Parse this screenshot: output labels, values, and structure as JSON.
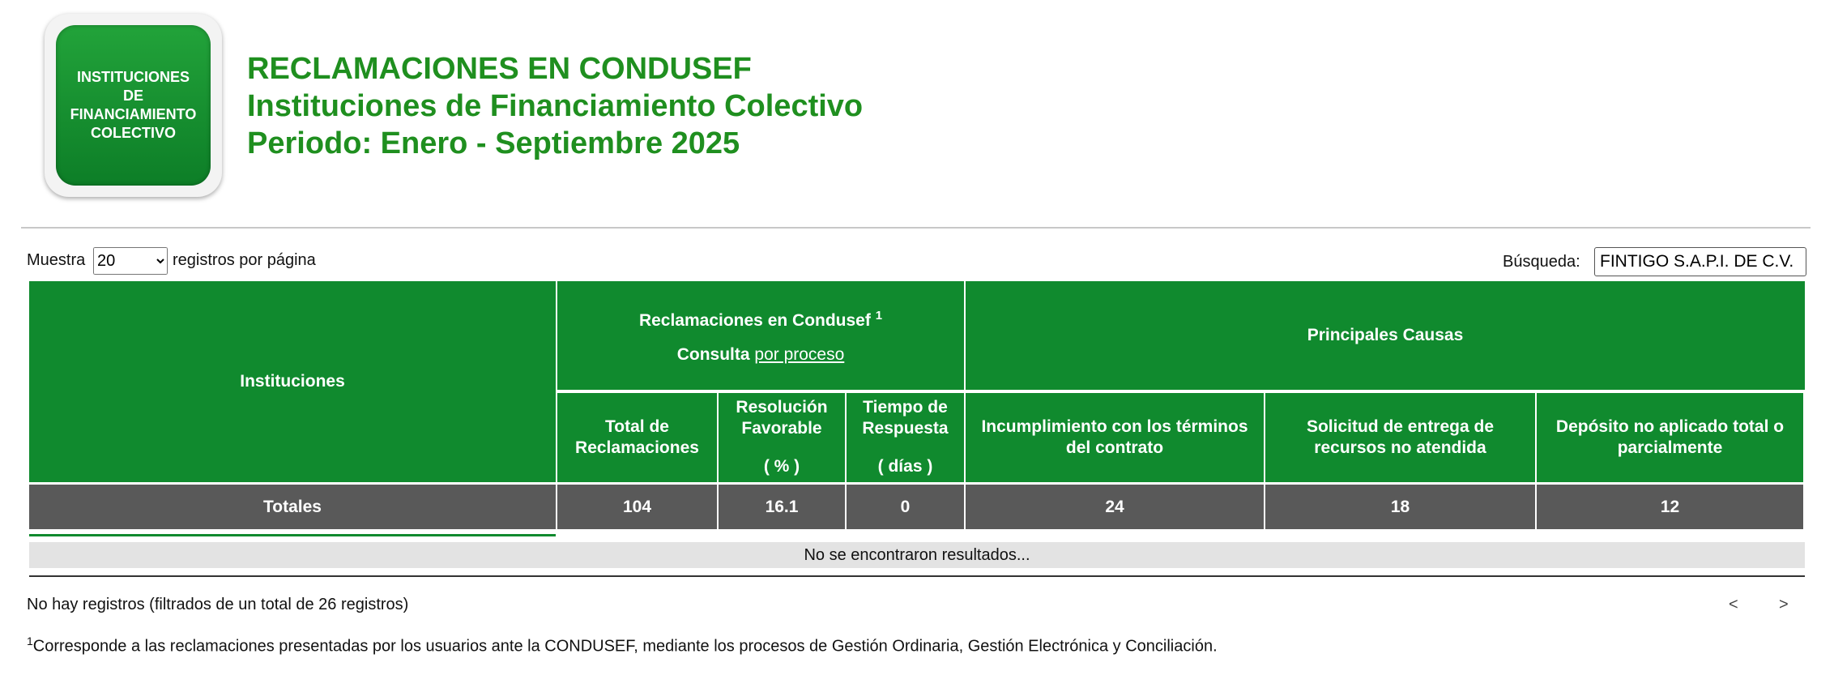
{
  "logo": {
    "lines": [
      "INSTITUCIONES",
      "DE",
      "FINANCIAMIENTO",
      "COLECTIVO"
    ]
  },
  "header": {
    "title": "RECLAMACIONES EN CONDUSEF",
    "subtitle": "Instituciones de Financiamiento Colectivo",
    "period": "Periodo: Enero - Septiembre 2025"
  },
  "controls": {
    "show_label": "Muestra",
    "page_size": "20",
    "per_page_label": "registros por página",
    "search_label": "Búsqueda:",
    "search_value": "FINTIGO S.A.P.I. DE C.V."
  },
  "table": {
    "col_institutions": "Instituciones",
    "group_claims": "Reclamaciones en Condusef",
    "group_claims_note": "1",
    "consult_label": "Consulta",
    "consult_link": "por proceso",
    "group_causes": "Principales Causas",
    "columns": [
      {
        "title": "Total de Reclamaciones",
        "unit": ""
      },
      {
        "title": "Resolución Favorable",
        "unit": "( % )"
      },
      {
        "title": "Tiempo de Respuesta",
        "unit": "( días )"
      },
      {
        "title": "Incumplimiento con los términos del contrato",
        "unit": ""
      },
      {
        "title": "Solicitud de entrega de recursos no atendida",
        "unit": ""
      },
      {
        "title": "Depósito no aplicado total o parcialmente",
        "unit": ""
      }
    ],
    "totals_label": "Totales",
    "totals": [
      "104",
      "16.1",
      "0",
      "24",
      "18",
      "12"
    ],
    "empty_message": "No se encontraron resultados..."
  },
  "info": "No hay registros (filtrados de un total de 26 registros)",
  "pagination": {
    "prev": "<",
    "next": ">"
  },
  "footnote": {
    "mark": "1",
    "text": "Corresponde a las reclamaciones presentadas por los usuarios ante la CONDUSEF, mediante los procesos de Gestión Ordinaria, Gestión Electrónica y Conciliación."
  }
}
